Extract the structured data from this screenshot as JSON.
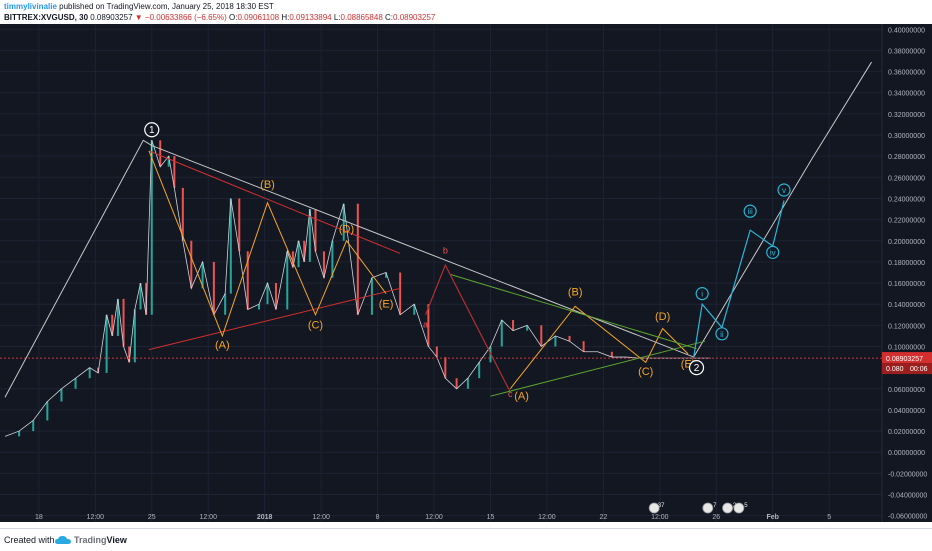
{
  "header": {
    "author": "timmylivinalie",
    "published_text": "published on TradingView.com, January 25, 2018 18:30 EST",
    "symbol": "BITTREX:XVGUSD, 30",
    "last_price": "0.08903257",
    "change": "−0.00633866 (−6.65%)",
    "open_label": "O:",
    "open": "0.09061108",
    "high_label": "H:",
    "high": "0.09133894",
    "low_label": "L:",
    "low": "0.08865848",
    "close_label": "C:",
    "close": "0.08903257"
  },
  "footer": {
    "created_with": "Created with",
    "brand_prefix": "Trading",
    "brand_suffix": "View"
  },
  "colors": {
    "background": "#131722",
    "grid": "#1e2333",
    "axis_text": "#b2b5be",
    "price_line": "#d32f2f",
    "wave_orange": "#f5a623",
    "trend_red": "#d32f2f",
    "trend_green": "#5ca62f",
    "trend_white": "#c8c8c8",
    "wave_cyan": "#29b6d6",
    "candle_up": "#26a69a",
    "candle_down": "#ef5350"
  },
  "chart_data": {
    "type": "line",
    "title": "BITTREX:XVGUSD, 30",
    "y_ticks": [
      "0.40000000",
      "0.38000000",
      "0.36000000",
      "0.34000000",
      "0.32000000",
      "0.30000000",
      "0.28000000",
      "0.26000000",
      "0.24000000",
      "0.22000000",
      "0.20000000",
      "0.18000000",
      "0.16000000",
      "0.14000000",
      "0.12000000",
      "0.10000000",
      "0.06000000",
      "0.04000000",
      "0.02000000",
      "0.00000000",
      "-0.02000000",
      "-0.04000000",
      "-0.06000000"
    ],
    "ylim": [
      -0.066,
      0.405
    ],
    "x_ticks": [
      "18",
      "12:00",
      "25",
      "12:00",
      "2018",
      "12:00",
      "8",
      "12:00",
      "15",
      "12:00",
      "22",
      "12:00",
      "26",
      "Feb",
      "5"
    ],
    "price_series": {
      "name": "XVGUSD",
      "x": [
        0,
        0.5,
        1,
        1.5,
        2,
        2.5,
        3,
        3.3,
        3.6,
        3.8,
        4,
        4.2,
        4.4,
        4.6,
        4.8,
        5,
        5.2,
        5.5,
        5.8,
        6,
        6.3,
        6.6,
        7,
        7.4,
        7.8,
        8,
        8.3,
        8.6,
        9,
        9.3,
        9.6,
        10,
        10.2,
        10.4,
        10.6,
        10.8,
        11,
        11.3,
        11.6,
        12,
        12.5,
        13,
        13.5,
        14,
        14.5,
        15,
        15.3,
        15.6,
        16,
        16.4,
        16.8,
        17.2,
        17.6,
        18,
        18.5,
        19,
        19.5,
        20,
        20.5,
        21,
        21.5,
        22,
        22.5,
        23,
        23.5,
        24,
        24.5,
        25
      ],
      "values": [
        0.015,
        0.02,
        0.03,
        0.048,
        0.06,
        0.07,
        0.08,
        0.075,
        0.13,
        0.11,
        0.145,
        0.1,
        0.085,
        0.135,
        0.16,
        0.13,
        0.295,
        0.27,
        0.28,
        0.25,
        0.2,
        0.155,
        0.18,
        0.13,
        0.15,
        0.24,
        0.19,
        0.135,
        0.14,
        0.16,
        0.135,
        0.19,
        0.175,
        0.2,
        0.18,
        0.23,
        0.19,
        0.165,
        0.2,
        0.235,
        0.13,
        0.165,
        0.17,
        0.13,
        0.14,
        0.1,
        0.09,
        0.07,
        0.06,
        0.07,
        0.085,
        0.1,
        0.125,
        0.115,
        0.12,
        0.1,
        0.11,
        0.105,
        0.095,
        0.095,
        0.09,
        0.09,
        0.089,
        0.089,
        0.089,
        0.089,
        0.089,
        0.089
      ]
    },
    "last_price": 0.08903257,
    "last_price_label": "0.08903257",
    "countdown_price_label": "0.080",
    "countdown_label": "00:06",
    "wave_labels": [
      {
        "text": "1",
        "x": 5.2,
        "y": 0.305,
        "kind": "circle-white"
      },
      {
        "text": "(B)",
        "x": 9.3,
        "y": 0.25,
        "kind": "orange"
      },
      {
        "text": "(D)",
        "x": 12.1,
        "y": 0.208,
        "kind": "orange"
      },
      {
        "text": "(A)",
        "x": 7.7,
        "y": 0.098,
        "kind": "orange"
      },
      {
        "text": "(C)",
        "x": 11.0,
        "y": 0.117,
        "kind": "orange"
      },
      {
        "text": "(E)",
        "x": 13.5,
        "y": 0.137,
        "kind": "orange"
      },
      {
        "text": "a",
        "x": 14.9,
        "y": 0.118,
        "kind": "red"
      },
      {
        "text": "b",
        "x": 15.6,
        "y": 0.188,
        "kind": "red"
      },
      {
        "text": "c",
        "x": 17.9,
        "y": 0.052,
        "kind": "red"
      },
      {
        "text": "(A)",
        "x": 18.3,
        "y": 0.05,
        "kind": "orange"
      },
      {
        "text": "(B)",
        "x": 20.2,
        "y": 0.148,
        "kind": "orange"
      },
      {
        "text": "(C)",
        "x": 22.7,
        "y": 0.073,
        "kind": "orange"
      },
      {
        "text": "(D)",
        "x": 23.3,
        "y": 0.125,
        "kind": "orange"
      },
      {
        "text": "(E)",
        "x": 24.2,
        "y": 0.08,
        "kind": "orange"
      },
      {
        "text": "2",
        "x": 24.5,
        "y": 0.08,
        "kind": "circle-white"
      },
      {
        "text": "i",
        "x": 24.7,
        "y": 0.15,
        "kind": "circle-cyan"
      },
      {
        "text": "ii",
        "x": 25.4,
        "y": 0.112,
        "kind": "circle-cyan"
      },
      {
        "text": "iii",
        "x": 26.4,
        "y": 0.228,
        "kind": "circle-cyan"
      },
      {
        "text": "iv",
        "x": 27.2,
        "y": 0.189,
        "kind": "circle-cyan"
      },
      {
        "text": "v",
        "x": 27.6,
        "y": 0.248,
        "kind": "circle-cyan"
      }
    ],
    "white_wave_line": [
      [
        0,
        0.052
      ],
      [
        4.9,
        0.295
      ],
      [
        5.2,
        0.29
      ],
      [
        24.4,
        0.09
      ],
      [
        28.6,
        0.278
      ],
      [
        30.7,
        0.369
      ]
    ],
    "orange_triangle_1": [
      [
        5.1,
        0.285
      ],
      [
        7.7,
        0.11
      ],
      [
        9.3,
        0.236
      ],
      [
        11.0,
        0.13
      ],
      [
        12.1,
        0.2
      ],
      [
        13.5,
        0.15
      ]
    ],
    "red_upper_line": [
      [
        5.1,
        0.285
      ],
      [
        14.0,
        0.188
      ]
    ],
    "red_lower_line": [
      [
        5.1,
        0.097
      ],
      [
        14.0,
        0.155
      ]
    ],
    "red_abc": [
      [
        14.9,
        0.13
      ],
      [
        15.6,
        0.177
      ],
      [
        17.9,
        0.057
      ]
    ],
    "orange_triangle_2": [
      [
        17.9,
        0.06
      ],
      [
        20.2,
        0.138
      ],
      [
        22.7,
        0.085
      ],
      [
        23.3,
        0.117
      ],
      [
        24.2,
        0.093
      ]
    ],
    "green_upper_line": [
      [
        15.8,
        0.168
      ],
      [
        24.5,
        0.098
      ]
    ],
    "green_lower_line": [
      [
        17.2,
        0.053
      ],
      [
        24.8,
        0.105
      ]
    ],
    "cyan_impulse": [
      [
        24.4,
        0.09
      ],
      [
        24.7,
        0.14
      ],
      [
        25.4,
        0.118
      ],
      [
        26.4,
        0.21
      ],
      [
        27.2,
        0.195
      ],
      [
        27.6,
        0.238
      ]
    ],
    "event_markers": [
      {
        "text": "37",
        "x": 23.0
      },
      {
        "text": "7",
        "x": 24.9
      },
      {
        "text": "2",
        "x": 25.6
      },
      {
        "text": "5",
        "x": 26.0
      }
    ]
  }
}
